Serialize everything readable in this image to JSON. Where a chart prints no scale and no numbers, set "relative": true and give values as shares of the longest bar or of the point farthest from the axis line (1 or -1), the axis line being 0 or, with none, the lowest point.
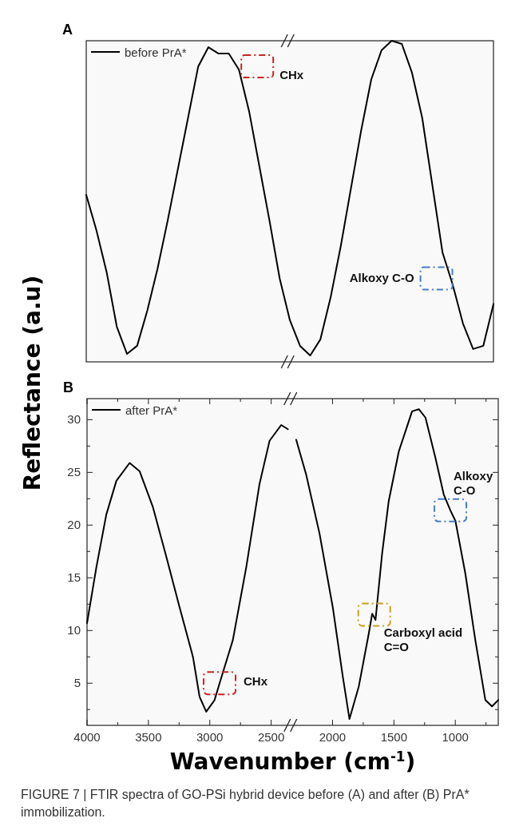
{
  "chart_data": [
    {
      "type": "line",
      "title": "A",
      "relative": true,
      "legend": "top left",
      "categories": [
        null,
        null,
        null,
        null,
        null,
        null,
        null,
        null,
        null,
        null,
        null,
        null,
        null,
        null,
        null,
        null,
        null,
        null,
        null,
        null,
        null,
        null,
        null,
        null,
        null,
        null,
        null,
        null,
        null,
        null,
        null,
        null,
        null,
        null,
        null,
        null,
        null,
        null,
        null,
        null,
        null
      ],
      "series": [
        {
          "name": "before PrA*",
          "color": "#000000",
          "values": [
            0.52,
            0.41,
            0.28,
            0.11,
            0.025,
            0.05,
            0.16,
            0.29,
            0.44,
            0.6,
            0.76,
            0.92,
            0.98,
            0.96,
            0.96,
            0.91,
            0.78,
            0.61,
            0.44,
            0.26,
            0.13,
            0.05,
            0.02,
            0.07,
            0.2,
            0.36,
            0.54,
            0.72,
            0.88,
            0.97,
            1,
            0.99,
            0.9,
            0.76,
            0.55,
            0.34,
            0.24,
            0.12,
            0.04,
            0.05,
            0.18
          ]
        }
      ],
      "annotations": [
        "CHx",
        "Alkoxy C-O"
      ]
    },
    {
      "type": "line",
      "title": "B",
      "legend": "top left",
      "xlim": [
        4000,
        650
      ],
      "ylim": [
        1,
        32
      ],
      "xticks": [
        4000,
        {
          "value": 3750,
          "label": null
        },
        3500,
        {
          "value": 3250,
          "label": null
        },
        3000,
        {
          "value": 2750,
          "label": null
        },
        2500,
        2000,
        {
          "value": 1750,
          "label": null
        },
        1500,
        {
          "value": 1250,
          "label": null
        },
        1000,
        {
          "value": 750,
          "label": null
        }
      ],
      "yticks": [
        {
          "value": 2.5,
          "label": null
        },
        5,
        {
          "value": 7.5,
          "label": null
        },
        10,
        {
          "value": 12.5,
          "label": null
        },
        15,
        {
          "value": 17.5,
          "label": null
        },
        20,
        {
          "value": 22.5,
          "label": null
        },
        25,
        {
          "value": 27.5,
          "label": null
        },
        30
      ],
      "xlabel": "Wavenumber (cm$^{-1}$)",
      "ylabel": "Reflectance (a.u)",
      "series": [
        {
          "name": "after PrA*",
          "color": "#000000",
          "x": [
            4000,
            3924,
            3843,
            3761,
            3653,
            3571,
            3463,
            3354,
            3246,
            3137,
            3083,
            3029,
            2961,
            2920,
            2812,
            2703,
            2595,
            2513,
            2418,
            2364,
            2340,
            2296,
            2215,
            2106,
            1998,
            1916,
            1862,
            1786,
            1705,
            1677,
            1650,
            1596,
            1542,
            1460,
            1352,
            1297,
            1243,
            1162,
            1094,
            1040,
            999,
            918,
            837,
            755,
            701,
            650
          ],
          "values": [
            10.7,
            16,
            21,
            24.2,
            25.9,
            25.1,
            21.7,
            17,
            12.2,
            7.5,
            3.7,
            2.3,
            3.4,
            5,
            9.1,
            16,
            23.9,
            28,
            29.5,
            29.1,
            null,
            28.1,
            24.8,
            19.2,
            12.2,
            5.6,
            1.6,
            4.7,
            9.7,
            11.6,
            11,
            17.3,
            22.3,
            27,
            30.8,
            31,
            30.2,
            26.4,
            22.9,
            21.4,
            20.4,
            15.4,
            9.1,
            3.4,
            2.8,
            3.4
          ]
        }
      ],
      "annotations": [
        {
          "text": "CHx",
          "x": 2920,
          "y": 5
        },
        {
          "text": "Carboxyl acid\nC=O",
          "x": 1660,
          "y": 11.5
        },
        {
          "text": "Alkoxy\nC-O",
          "x": 1040,
          "y": 21.4
        },
        "FIGURE 7 | FTIR spectra of GO-PSi hybrid device before (A) and after (B) PrA* immobilization."
      ]
    }
  ]
}
